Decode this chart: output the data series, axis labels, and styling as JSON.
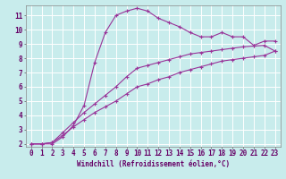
{
  "xlabel": "Windchill (Refroidissement éolien,°C)",
  "xlim": [
    -0.5,
    23.5
  ],
  "ylim": [
    1.8,
    11.7
  ],
  "xticks": [
    0,
    1,
    2,
    3,
    4,
    5,
    6,
    7,
    8,
    9,
    10,
    11,
    12,
    13,
    14,
    15,
    16,
    17,
    18,
    19,
    20,
    21,
    22,
    23
  ],
  "yticks": [
    2,
    3,
    4,
    5,
    6,
    7,
    8,
    9,
    10,
    11
  ],
  "bg_color": "#c8ecec",
  "grid_color": "#ffffff",
  "line_color": "#993399",
  "marker": "+",
  "line1_y": [
    2.0,
    2.0,
    2.0,
    2.5,
    3.3,
    4.7,
    7.7,
    9.8,
    11.0,
    11.3,
    11.5,
    11.3,
    10.8,
    10.5,
    10.2,
    9.8,
    9.5,
    9.5,
    9.8,
    9.5,
    9.5,
    8.9,
    9.2,
    9.2
  ],
  "line2_y": [
    2.0,
    2.0,
    2.1,
    2.8,
    3.5,
    4.2,
    4.8,
    5.4,
    6.0,
    6.7,
    7.3,
    7.5,
    7.7,
    7.9,
    8.1,
    8.3,
    8.4,
    8.5,
    8.6,
    8.7,
    8.8,
    8.85,
    8.9,
    8.5
  ],
  "line3_y": [
    2.0,
    2.0,
    2.1,
    2.6,
    3.2,
    3.7,
    4.2,
    4.6,
    5.0,
    5.5,
    6.0,
    6.2,
    6.5,
    6.7,
    7.0,
    7.2,
    7.4,
    7.6,
    7.8,
    7.9,
    8.0,
    8.1,
    8.2,
    8.5
  ],
  "tick_fontsize": 5.5,
  "xlabel_fontsize": 5.5,
  "spine_color": "#555555",
  "tick_color": "#555555"
}
